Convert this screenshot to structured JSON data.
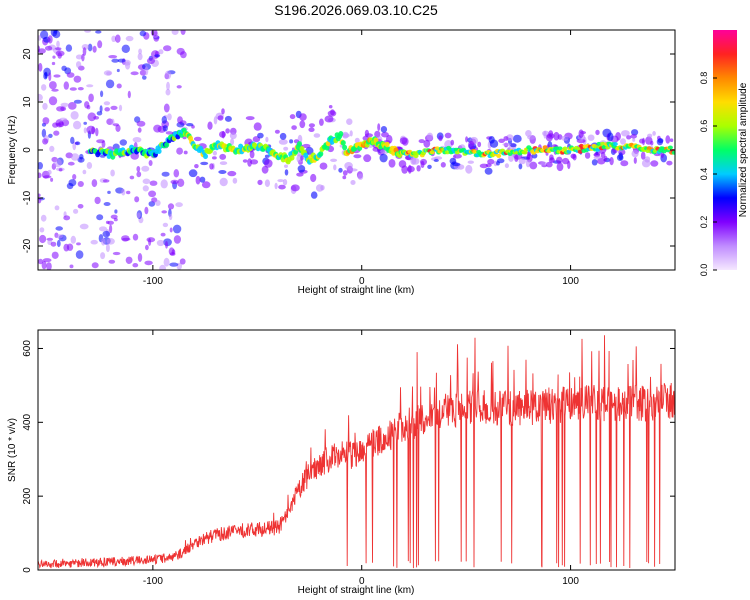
{
  "title": "S196.2026.069.03.10.C25",
  "chart_data": [
    {
      "type": "heatmap",
      "xlabel": "Height of straight line (km)",
      "ylabel": "Frequency (Hz)",
      "xlim": [
        -155,
        150
      ],
      "ylim": [
        -25,
        25
      ],
      "xticks": [
        -100,
        0,
        100
      ],
      "xtick_labels": [
        "-100",
        "0",
        "100"
      ],
      "yticks": [
        -20,
        -10,
        0,
        10,
        20
      ],
      "ytick_labels": [
        "-20",
        "-10",
        "0",
        "10",
        "20"
      ],
      "colorbar": {
        "label": "Normalized spectral amplitude",
        "range": [
          0,
          1
        ],
        "ticks": [
          0.0,
          0.2,
          0.4,
          0.6,
          0.8
        ],
        "tick_labels": [
          "0.0",
          "0.2",
          "0.4",
          "0.6",
          "0.8"
        ],
        "colors": [
          "#f5e8ff",
          "#c08cff",
          "#8000ff",
          "#0000ff",
          "#00ccff",
          "#00ff66",
          "#aaff00",
          "#ffdd00",
          "#ff8800",
          "#ff2222",
          "#ff0099"
        ]
      },
      "ridge": {
        "x": [
          -130,
          -120,
          -110,
          -100,
          -95,
          -85,
          -80,
          -75,
          -70,
          -60,
          -50,
          -40,
          -35,
          -30,
          -25,
          -20,
          -15,
          -10,
          -7,
          -5,
          0,
          5,
          10,
          15,
          20,
          40,
          60,
          80,
          100,
          120,
          140,
          150
        ],
        "y": [
          0,
          -1,
          0,
          -1,
          1,
          4,
          1,
          -1,
          1,
          0,
          1,
          -1,
          -2,
          1,
          -2,
          -1,
          2,
          3,
          -1,
          0,
          1,
          2,
          1,
          0,
          -1,
          0,
          -1,
          0,
          0,
          1,
          0,
          0
        ]
      }
    },
    {
      "type": "line",
      "xlabel": "Height of straight line (km)",
      "ylabel": "SNR (10 * v/v)",
      "xlim": [
        -155,
        150
      ],
      "ylim": [
        0,
        650
      ],
      "xticks": [
        -100,
        0,
        100
      ],
      "xtick_labels": [
        "-100",
        "0",
        "100"
      ],
      "yticks": [
        0,
        200,
        400,
        600
      ],
      "ytick_labels": [
        "0",
        "200",
        "400",
        "600"
      ],
      "series": [
        {
          "name": "SNR",
          "color": "#ee3333",
          "x": [
            -155,
            -140,
            -120,
            -100,
            -90,
            -85,
            -80,
            -75,
            -70,
            -60,
            -50,
            -40,
            -35,
            -30,
            -25,
            -20,
            -15,
            -10,
            -5,
            0,
            5,
            10,
            15,
            20,
            25,
            30,
            40,
            50,
            60,
            70,
            80,
            90,
            100,
            110,
            120,
            130,
            140,
            150
          ],
          "values": [
            15,
            18,
            22,
            28,
            35,
            50,
            75,
            85,
            95,
            105,
            110,
            115,
            150,
            220,
            260,
            290,
            300,
            320,
            310,
            320,
            340,
            360,
            370,
            390,
            400,
            410,
            430,
            440,
            440,
            440,
            440,
            445,
            450,
            455,
            450,
            455,
            450,
            465
          ]
        }
      ]
    }
  ]
}
